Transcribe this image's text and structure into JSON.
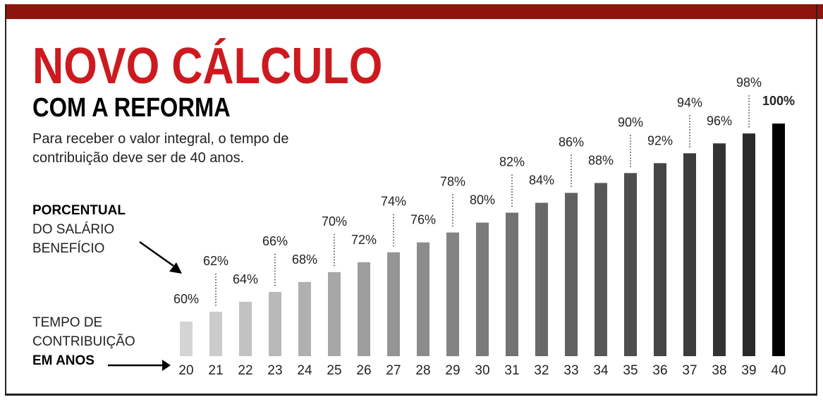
{
  "header": {
    "title": "NOVO CÁLCULO",
    "subtitle": "COM A REFORMA",
    "description": "Para receber o valor integral, o tempo de contribuição deve ser de 40 anos."
  },
  "legend": {
    "percent_label_bold": "PORCENTUAL",
    "percent_label_rest1": "DO SALÁRIO",
    "percent_label_rest2": "BENEFÍCIO",
    "years_label_1": "TEMPO DE",
    "years_label_2": "CONTRIBUIÇÃO",
    "years_label_bold": "EM ANOS"
  },
  "colors": {
    "title": "#cc1a1f",
    "topbar": "#8e140e",
    "bar_light": "#d4d4d4",
    "bar_dark": "#2a2a2a",
    "bar_final": "#000000"
  },
  "chart_data": {
    "type": "bar",
    "title": "NOVO CÁLCULO COM A REFORMA",
    "xlabel": "TEMPO DE CONTRIBUIÇÃO EM ANOS",
    "ylabel": "PORCENTUAL DO SALÁRIO BENEFÍCIO",
    "categories": [
      "20",
      "21",
      "22",
      "23",
      "24",
      "25",
      "26",
      "27",
      "28",
      "29",
      "30",
      "31",
      "32",
      "33",
      "34",
      "35",
      "36",
      "37",
      "38",
      "39",
      "40"
    ],
    "values": [
      60,
      62,
      64,
      66,
      68,
      70,
      72,
      74,
      76,
      78,
      80,
      82,
      84,
      86,
      88,
      90,
      92,
      94,
      96,
      98,
      100
    ],
    "data_labels": [
      "60%",
      "62%",
      "64%",
      "66%",
      "68%",
      "70%",
      "72%",
      "74%",
      "76%",
      "78%",
      "80%",
      "82%",
      "84%",
      "86%",
      "88%",
      "90%",
      "92%",
      "94%",
      "96%",
      "98%",
      "100%"
    ],
    "grid": false
  }
}
